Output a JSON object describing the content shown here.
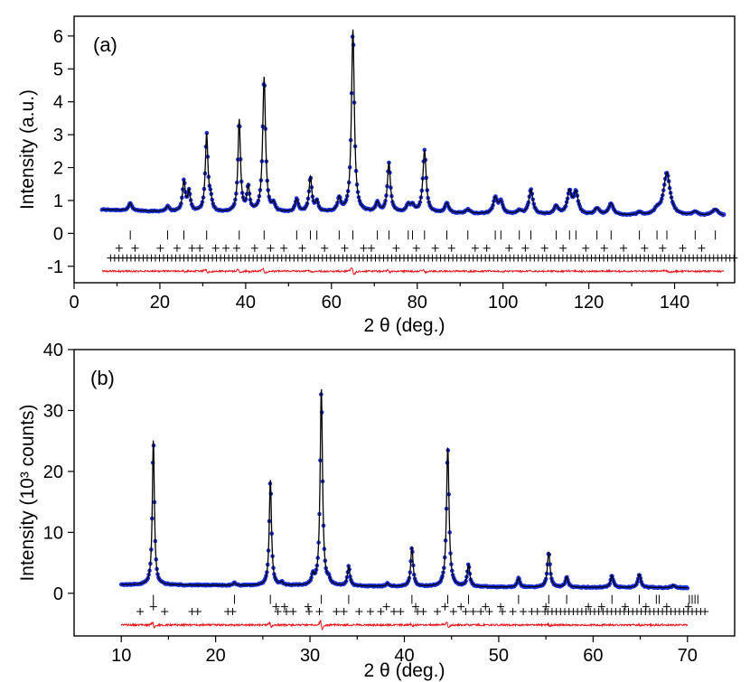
{
  "colors": {
    "observed": "#1a2fd6",
    "calculated": "#000000",
    "difference": "#e8141c",
    "reflections": "#000000"
  },
  "chart_data": [
    {
      "type": "line",
      "panel_label": "(a)",
      "xlabel": "2 θ (deg.)",
      "ylabel": "Intensity (a.u.)",
      "xlim": [
        0,
        154
      ],
      "ylim": [
        -1.5,
        6.6
      ],
      "x_ticks": [
        0,
        20,
        40,
        60,
        80,
        100,
        120,
        140
      ],
      "x_tick_labels": [
        "0",
        "20",
        "40",
        "60",
        "80",
        "100",
        "120",
        "140"
      ],
      "y_ticks": [
        -1,
        0,
        1,
        2,
        3,
        4,
        5,
        6
      ],
      "y_tick_labels": [
        "-1",
        "0",
        "1",
        "2",
        "3",
        "4",
        "5",
        "6"
      ],
      "x_range": [
        6.5,
        151.5
      ],
      "background": [
        [
          6.5,
          0.72
        ],
        [
          20,
          0.66
        ],
        [
          40,
          0.62
        ],
        [
          60,
          0.64
        ],
        [
          80,
          0.62
        ],
        [
          100,
          0.58
        ],
        [
          120,
          0.55
        ],
        [
          140,
          0.53
        ],
        [
          151.5,
          0.52
        ]
      ],
      "peaks": [
        {
          "x": 13.1,
          "h": 0.22,
          "w": 0.45
        },
        {
          "x": 21.8,
          "h": 0.15,
          "w": 0.5
        },
        {
          "x": 25.6,
          "h": 0.92,
          "w": 0.38
        },
        {
          "x": 26.8,
          "h": 0.6,
          "w": 0.38
        },
        {
          "x": 30.9,
          "h": 2.35,
          "w": 0.36
        },
        {
          "x": 31.8,
          "h": 0.35,
          "w": 0.4
        },
        {
          "x": 38.5,
          "h": 2.8,
          "w": 0.35
        },
        {
          "x": 40.6,
          "h": 0.75,
          "w": 0.38
        },
        {
          "x": 44.3,
          "h": 4.1,
          "w": 0.4
        },
        {
          "x": 46.5,
          "h": 0.22,
          "w": 0.4
        },
        {
          "x": 51.9,
          "h": 0.38,
          "w": 0.45
        },
        {
          "x": 55.1,
          "h": 1.05,
          "w": 0.4
        },
        {
          "x": 56.6,
          "h": 0.3,
          "w": 0.4
        },
        {
          "x": 61.8,
          "h": 0.4,
          "w": 0.45
        },
        {
          "x": 65.0,
          "h": 5.55,
          "w": 0.4
        },
        {
          "x": 70.7,
          "h": 0.28,
          "w": 0.45
        },
        {
          "x": 73.4,
          "h": 1.5,
          "w": 0.42
        },
        {
          "x": 77.9,
          "h": 0.22,
          "w": 0.5
        },
        {
          "x": 78.9,
          "h": 0.2,
          "w": 0.5
        },
        {
          "x": 81.7,
          "h": 1.9,
          "w": 0.45
        },
        {
          "x": 86.9,
          "h": 0.3,
          "w": 0.55
        },
        {
          "x": 91.8,
          "h": 0.12,
          "w": 0.6
        },
        {
          "x": 98.2,
          "h": 0.48,
          "w": 0.55
        },
        {
          "x": 99.5,
          "h": 0.35,
          "w": 0.55
        },
        {
          "x": 103.8,
          "h": 0.1,
          "w": 0.6
        },
        {
          "x": 106.5,
          "h": 0.75,
          "w": 0.55
        },
        {
          "x": 112.4,
          "h": 0.25,
          "w": 0.6
        },
        {
          "x": 115.5,
          "h": 0.68,
          "w": 0.6
        },
        {
          "x": 117.0,
          "h": 0.65,
          "w": 0.6
        },
        {
          "x": 121.9,
          "h": 0.2,
          "w": 0.65
        },
        {
          "x": 125.2,
          "h": 0.35,
          "w": 0.65
        },
        {
          "x": 131.8,
          "h": 0.08,
          "w": 0.7
        },
        {
          "x": 135.9,
          "h": 0.15,
          "w": 0.7
        },
        {
          "x": 138.2,
          "h": 1.3,
          "w": 0.9
        },
        {
          "x": 144.8,
          "h": 0.12,
          "w": 0.8
        },
        {
          "x": 149.5,
          "h": 0.2,
          "w": 0.9
        }
      ],
      "difference_offset": -1.15,
      "reflection_rows": [
        {
          "y": -0.05,
          "marker": "bar",
          "positions": [
            13.1,
            21.8,
            25.6,
            30.9,
            38.5,
            44.3,
            51.9,
            55.1,
            56.6,
            61.8,
            65.0,
            70.7,
            73.4,
            77.9,
            78.9,
            81.7,
            86.9,
            91.8,
            98.2,
            99.5,
            103.8,
            106.5,
            112.4,
            115.5,
            117.0,
            121.9,
            125.2,
            131.8,
            135.9,
            138.2,
            144.8,
            149.5
          ]
        },
        {
          "y": -0.45,
          "marker": "plus",
          "positions": [
            10.5,
            14.2,
            20.1,
            24.0,
            27.5,
            29.3,
            33.0,
            35.4,
            37.9,
            42.1,
            45.8,
            48.9,
            53.2,
            58.4,
            63.1,
            67.5,
            69.3,
            75.1,
            79.8,
            84.2,
            88.0,
            93.5,
            96.2,
            101.4,
            105.2,
            109.7,
            114.0,
            119.3,
            123.6,
            128.1,
            133.0,
            137.2,
            141.9,
            146.3
          ]
        },
        {
          "y": -0.75,
          "marker": "plus",
          "x_start": 8.5,
          "x_end": 154,
          "step": 0.95
        }
      ]
    },
    {
      "type": "line",
      "panel_label": "(b)",
      "xlabel": "2 θ (deg.)",
      "ylabel": "Intensity (10³ counts)",
      "xlim": [
        5,
        75
      ],
      "ylim": [
        -7,
        40
      ],
      "x_ticks": [
        10,
        20,
        30,
        40,
        50,
        60,
        70
      ],
      "x_tick_labels": [
        "10",
        "20",
        "30",
        "40",
        "50",
        "60",
        "70"
      ],
      "y_ticks": [
        0,
        10,
        20,
        30,
        40
      ],
      "y_tick_labels": [
        "0",
        "10",
        "20",
        "30",
        "40"
      ],
      "x_range": [
        10.0,
        70.0
      ],
      "background": [
        [
          10,
          1.4
        ],
        [
          30,
          1.2
        ],
        [
          50,
          1.0
        ],
        [
          70,
          0.9
        ]
      ],
      "peaks": [
        {
          "x": 13.4,
          "h": 24.0,
          "w": 0.13
        },
        {
          "x": 22.0,
          "h": 0.4,
          "w": 0.15
        },
        {
          "x": 25.8,
          "h": 17.5,
          "w": 0.14
        },
        {
          "x": 27.0,
          "h": 0.5,
          "w": 0.15
        },
        {
          "x": 30.3,
          "h": 1.5,
          "w": 0.15
        },
        {
          "x": 31.2,
          "h": 32.5,
          "w": 0.15
        },
        {
          "x": 32.0,
          "h": 0.8,
          "w": 0.15
        },
        {
          "x": 34.1,
          "h": 3.2,
          "w": 0.15
        },
        {
          "x": 38.2,
          "h": 0.5,
          "w": 0.15
        },
        {
          "x": 40.8,
          "h": 6.5,
          "w": 0.15
        },
        {
          "x": 44.6,
          "h": 23.0,
          "w": 0.16
        },
        {
          "x": 46.8,
          "h": 3.6,
          "w": 0.16
        },
        {
          "x": 52.1,
          "h": 1.5,
          "w": 0.16
        },
        {
          "x": 55.3,
          "h": 5.8,
          "w": 0.17
        },
        {
          "x": 57.2,
          "h": 1.7,
          "w": 0.17
        },
        {
          "x": 62.0,
          "h": 2.0,
          "w": 0.17
        },
        {
          "x": 64.9,
          "h": 2.2,
          "w": 0.18
        },
        {
          "x": 68.5,
          "h": 0.4,
          "w": 0.18
        }
      ],
      "difference_offset": -5.2,
      "reflection_rows": [
        {
          "y": -1.0,
          "marker": "bar",
          "positions": [
            13.4,
            22.0,
            25.8,
            31.2,
            34.1,
            40.8,
            44.6,
            46.8,
            52.1,
            55.3,
            57.2,
            62.0,
            64.9,
            66.7,
            67.0,
            70.2,
            70.5,
            70.8,
            71.1
          ]
        },
        {
          "y": -2.2,
          "marker": "plus",
          "positions": [
            13.4,
            26.4,
            27.3,
            29.8,
            38.1,
            41.2,
            44.3,
            46.0,
            48.6,
            50.2,
            55.0,
            59.5,
            60.9,
            63.4,
            65.6,
            67.8,
            70.1
          ]
        },
        {
          "y": -3.0,
          "marker": "plus",
          "positions": [
            12.0,
            14.6,
            17.5,
            18.1,
            21.3,
            21.8,
            26.6,
            27.5,
            28.2,
            29.9,
            31.0,
            32.8,
            33.6,
            35.2,
            36.4,
            37.5,
            38.9,
            39.6,
            41.4,
            42.0,
            43.5,
            45.2,
            46.5,
            47.3,
            48.1,
            49.0,
            50.4,
            51.5,
            52.6,
            53.5,
            54.1,
            54.9
          ]
        },
        {
          "y": -3.0,
          "marker": "plus",
          "x_start": 55.2,
          "x_end": 72,
          "step": 0.45
        }
      ]
    }
  ]
}
